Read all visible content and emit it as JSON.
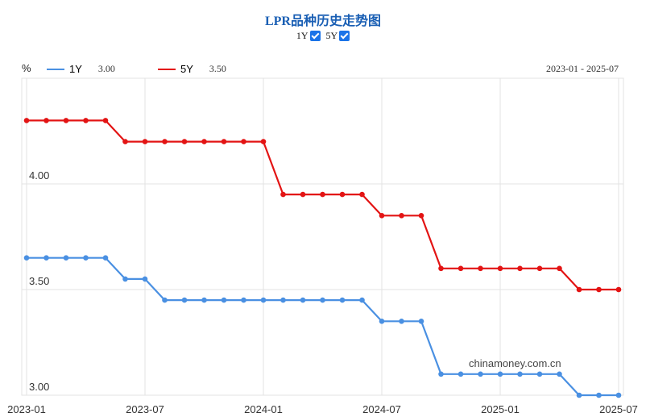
{
  "chart_data": {
    "type": "line",
    "title": "LPR品种历史走势图",
    "unit_label": "%",
    "date_range": "2023-01 - 2025-07",
    "toggles": [
      {
        "label": "1Y",
        "checked": true
      },
      {
        "label": "5Y",
        "checked": true
      }
    ],
    "x": [
      "2023-01",
      "2023-02",
      "2023-03",
      "2023-04",
      "2023-05",
      "2023-06",
      "2023-07",
      "2023-08",
      "2023-09",
      "2023-10",
      "2023-11",
      "2023-12",
      "2024-01",
      "2024-02",
      "2024-03",
      "2024-04",
      "2024-05",
      "2024-06",
      "2024-07",
      "2024-08",
      "2024-09",
      "2024-10",
      "2024-11",
      "2024-12",
      "2025-01",
      "2025-02",
      "2025-03",
      "2025-04",
      "2025-05",
      "2025-06",
      "2025-07"
    ],
    "x_ticks": [
      "2023-01",
      "2023-07",
      "2024-01",
      "2024-07",
      "2025-01",
      "2025-07"
    ],
    "y_ticks": [
      "3.00",
      "3.50",
      "4.00"
    ],
    "ylim": [
      3.0,
      4.5
    ],
    "grid": true,
    "legend_position": "top-left",
    "series": [
      {
        "name": "1Y",
        "color": "#4a90e2",
        "latest": "3.00",
        "values": [
          3.65,
          3.65,
          3.65,
          3.65,
          3.65,
          3.55,
          3.55,
          3.45,
          3.45,
          3.45,
          3.45,
          3.45,
          3.45,
          3.45,
          3.45,
          3.45,
          3.45,
          3.45,
          3.35,
          3.35,
          3.35,
          3.1,
          3.1,
          3.1,
          3.1,
          3.1,
          3.1,
          3.1,
          3.0,
          3.0,
          3.0
        ]
      },
      {
        "name": "5Y",
        "color": "#e31414",
        "latest": "3.50",
        "values": [
          4.3,
          4.3,
          4.3,
          4.3,
          4.3,
          4.2,
          4.2,
          4.2,
          4.2,
          4.2,
          4.2,
          4.2,
          4.2,
          3.95,
          3.95,
          3.95,
          3.95,
          3.95,
          3.85,
          3.85,
          3.85,
          3.6,
          3.6,
          3.6,
          3.6,
          3.6,
          3.6,
          3.6,
          3.5,
          3.5,
          3.5
        ]
      }
    ],
    "watermark": "chinamoney.com.cn"
  }
}
